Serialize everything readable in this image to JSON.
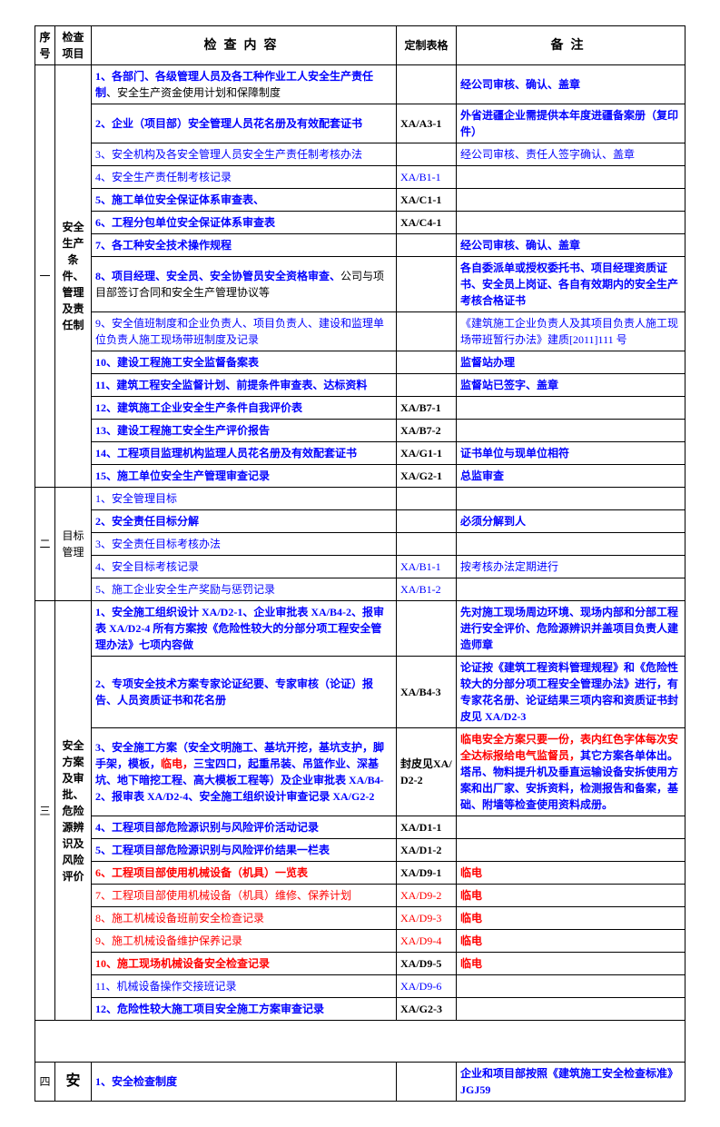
{
  "colors": {
    "blue": "#0000ff",
    "red": "#ff0000",
    "black": "#000000"
  },
  "header": {
    "seq": "序号",
    "item": "检查项目",
    "content": "检查内容",
    "form": "定制表格",
    "note": "备注"
  },
  "sections": [
    {
      "seq": "一",
      "item": "安全生产条件、管理及责任制",
      "rows": [
        {
          "content": [
            {
              "t": "1、各部门、各级管理人员及各工种作业工人安全生产责任制",
              "c": "blue",
              "b": true
            },
            {
              "t": "、安全生产资金使用计划和保障制度",
              "c": "black"
            }
          ],
          "form": "",
          "note": [
            {
              "t": "经公司审核、确认、盖章",
              "c": "blue",
              "b": true
            }
          ]
        },
        {
          "content": [
            {
              "t": "2、企业（项目部）安全管理人员花名册及有效配套证书",
              "c": "blue",
              "b": true
            }
          ],
          "form": "XA/A3-1",
          "note": [
            {
              "t": "外省进疆企业需提供本年度进疆备案册（复印件）",
              "c": "blue",
              "b": true
            }
          ]
        },
        {
          "content": [
            {
              "t": "3、安全机构及各安全管理人员安全生产责任制考核办法",
              "c": "blue"
            }
          ],
          "form": "",
          "note": [
            {
              "t": "经公司审核、责任人签字确认、盖章",
              "c": "blue"
            }
          ]
        },
        {
          "content": [
            {
              "t": "4、安全生产责任制考核记录",
              "c": "blue"
            }
          ],
          "form": "XA/B1-1",
          "fc": "blue",
          "note": []
        },
        {
          "content": [
            {
              "t": "5、施工单位安全保证体系审查表、",
              "c": "blue",
              "b": true
            }
          ],
          "form": "XA/C1-1",
          "note": []
        },
        {
          "content": [
            {
              "t": "6、工程分包单位安全保证体系审查表",
              "c": "blue",
              "b": true
            }
          ],
          "form": "XA/C4-1",
          "note": []
        },
        {
          "content": [
            {
              "t": "7、各工种安全技术操作规程",
              "c": "blue",
              "b": true
            }
          ],
          "form": "",
          "note": [
            {
              "t": "经公司审核、确认、盖章",
              "c": "blue",
              "b": true
            }
          ]
        },
        {
          "content": [
            {
              "t": "8、项目经理、安全员、安全协管员安全资格审查、",
              "c": "blue",
              "b": true
            },
            {
              "t": "公司与项目部签订合同和安全生产管理协议等",
              "c": "black"
            }
          ],
          "form": "",
          "note": [
            {
              "t": "各自委派单或授权委托书、项目经理资质证书、安全员上岗证、各自有效期内的安全生产考核合格证书",
              "c": "blue",
              "b": true
            }
          ]
        },
        {
          "content": [
            {
              "t": "9、安全值班制度和企业负责人、项目负责人、建设和监理单位负责人施工现场带班制度及记录",
              "c": "blue"
            }
          ],
          "form": "",
          "note": [
            {
              "t": "《建筑施工企业负责人及其项目负责人施工现场带班暂行办法》建质[2011]111 号",
              "c": "blue"
            }
          ]
        },
        {
          "content": [
            {
              "t": "10、建设工程施工安全监督备案表",
              "c": "blue",
              "b": true
            }
          ],
          "form": "",
          "note": [
            {
              "t": "监督站办理",
              "c": "blue",
              "b": true
            }
          ]
        },
        {
          "content": [
            {
              "t": "11、建筑工程安全监督计划、前提条件审查表、达标资料",
              "c": "blue",
              "b": true
            }
          ],
          "form": "",
          "note": [
            {
              "t": "监督站已签字、盖章",
              "c": "blue",
              "b": true
            }
          ]
        },
        {
          "content": [
            {
              "t": "12、建筑施工企业安全生产条件自我评价表",
              "c": "blue",
              "b": true
            }
          ],
          "form": "XA/B7-1",
          "note": []
        },
        {
          "content": [
            {
              "t": "13、建设工程施工安全生产评价报告",
              "c": "blue",
              "b": true
            }
          ],
          "form": "XA/B7-2",
          "note": []
        },
        {
          "content": [
            {
              "t": "14、工程项目监理机构监理人员花名册及有效配套证书",
              "c": "blue",
              "b": true
            }
          ],
          "form": "XA/G1-1",
          "note": [
            {
              "t": "证书单位与现单位相符",
              "c": "blue",
              "b": true
            }
          ]
        },
        {
          "content": [
            {
              "t": "15、施工单位安全生产管理审查记录",
              "c": "blue",
              "b": true
            }
          ],
          "form": "XA/G2-1",
          "note": [
            {
              "t": "总监审查",
              "c": "blue",
              "b": true
            }
          ]
        }
      ]
    },
    {
      "seq": "二",
      "item": "目标管理",
      "itemBold": false,
      "rows": [
        {
          "content": [
            {
              "t": "1、安全管理目标",
              "c": "blue"
            }
          ],
          "form": "",
          "note": []
        },
        {
          "content": [
            {
              "t": "2、安全责任目标分解",
              "c": "blue",
              "b": true
            }
          ],
          "form": "",
          "note": [
            {
              "t": "必须分解到人",
              "c": "blue",
              "b": true
            }
          ]
        },
        {
          "content": [
            {
              "t": "3、安全责任目标考核办法",
              "c": "blue"
            }
          ],
          "form": "",
          "note": []
        },
        {
          "content": [
            {
              "t": "4、安全目标考核记录",
              "c": "blue"
            }
          ],
          "form": "XA/B1-1",
          "fc": "blue",
          "note": [
            {
              "t": "按考核办法定期进行",
              "c": "blue"
            }
          ]
        },
        {
          "content": [
            {
              "t": "5、施工企业安全生产奖励与惩罚记录",
              "c": "blue"
            }
          ],
          "form": "XA/B1-2",
          "fc": "blue",
          "note": []
        }
      ]
    },
    {
      "seq": "三",
      "item": "安全方案及审批、危险源辨识及风险评价",
      "rows": [
        {
          "content": [
            {
              "t": "1、安全施工组织设计 XA/D2-1、企业审批表 XA/B4-2、报审表 XA/D2-4 所有方案按《危险性较大的分部分项工程安全管理办法》七项内容做",
              "c": "blue",
              "b": true
            }
          ],
          "form": "",
          "note": [
            {
              "t": "先对施工现场周边环境、现场内部和分部工程进行安全评价、危险源辨识并盖项目负责人建造师章",
              "c": "blue",
              "b": true
            }
          ]
        },
        {
          "content": [
            {
              "t": "2、专项安全技术方案专家论证纪要、专家审核（论证）报告、人员资质证书和花名册",
              "c": "blue",
              "b": true
            }
          ],
          "form": "XA/B4-3",
          "note": [
            {
              "t": "论证按《建筑工程资料管理规程》和《危险性较大的分部分项工程安全管理办法》进行，有专家花名册、论证结果三项内容和资质证书封皮见 XA/D2-3",
              "c": "blue",
              "b": true
            }
          ]
        },
        {
          "content": [
            {
              "t": "3、安全施工方案（安全文明施工、基坑开挖，基坑支护，脚手架，模板，",
              "c": "blue",
              "b": true
            },
            {
              "t": "临电，",
              "c": "red",
              "b": true
            },
            {
              "t": "三宝四口，起重吊装、吊篮作业、深基坑、地下暗挖工程、高大模板工程等）及企业审批表 XA/B4-2、报审表 XA/D2-4、",
              "c": "blue",
              "b": true
            },
            {
              "t": "安全施工组织设计审查记录 XA/G2-2",
              "c": "blue",
              "b": true
            }
          ],
          "form": "封皮见XA/D2-2",
          "note": [
            {
              "t": "临电安全方案只要一份，表内红色字体每次安全达标报给电气监督员，",
              "c": "red",
              "b": true
            },
            {
              "t": "其它方案各单体出。塔吊、物料提升机及垂直运输设备安拆使用方案和出厂家、安拆资料，检测报告和备案，基础、附墙等检查使用资料成册。",
              "c": "blue",
              "b": true
            }
          ]
        },
        {
          "content": [
            {
              "t": "4、工程项目部危险源识别与风险评价活动记录",
              "c": "blue",
              "b": true
            }
          ],
          "form": "XA/D1-1",
          "note": []
        },
        {
          "content": [
            {
              "t": "5、工程项目部危险源识别与风险评价结果一栏表",
              "c": "blue",
              "b": true
            }
          ],
          "form": "XA/D1-2",
          "note": []
        },
        {
          "content": [
            {
              "t": "6、工程项目部使用机械设备（机具）一览表",
              "c": "red",
              "b": true
            }
          ],
          "form": "XA/D9-1",
          "note": [
            {
              "t": "临电",
              "c": "red",
              "b": true
            }
          ]
        },
        {
          "content": [
            {
              "t": "7、工程项目部使用机械设备（机具）维修、保养计划",
              "c": "red"
            }
          ],
          "form": "XA/D9-2",
          "fc": "red",
          "note": [
            {
              "t": "临电",
              "c": "red",
              "b": true
            }
          ]
        },
        {
          "content": [
            {
              "t": "8、施工机械设备班前安全检查记录",
              "c": "red"
            }
          ],
          "form": "XA/D9-3",
          "fc": "red",
          "note": [
            {
              "t": "临电",
              "c": "red",
              "b": true
            }
          ]
        },
        {
          "content": [
            {
              "t": "9、施工机械设备维护保养记录",
              "c": "red"
            }
          ],
          "form": "XA/D9-4",
          "fc": "red",
          "note": [
            {
              "t": "临电",
              "c": "red",
              "b": true
            }
          ]
        },
        {
          "content": [
            {
              "t": "10、施工现场机械设备安全检查记录",
              "c": "red",
              "b": true
            }
          ],
          "form": "XA/D9-5",
          "note": [
            {
              "t": "临电",
              "c": "red",
              "b": true
            }
          ]
        },
        {
          "content": [
            {
              "t": "11、机械设备操作交接班记录",
              "c": "blue"
            }
          ],
          "form": "XA/D9-6",
          "fc": "blue",
          "note": []
        },
        {
          "content": [
            {
              "t": "12、危险性较大施工项目安全施工方案审查记录",
              "c": "blue",
              "b": true
            }
          ],
          "form": "XA/G2-3",
          "note": []
        }
      ]
    },
    {
      "seq": "四",
      "item": "安",
      "itemBig": true,
      "rows": [
        {
          "content": [
            {
              "t": "1、安全检查制度",
              "c": "blue",
              "b": true
            }
          ],
          "form": "",
          "note": [
            {
              "t": "企业和项目部按照《建筑施工安全检查标准》JGJ59",
              "c": "blue",
              "b": true
            }
          ]
        }
      ]
    }
  ]
}
